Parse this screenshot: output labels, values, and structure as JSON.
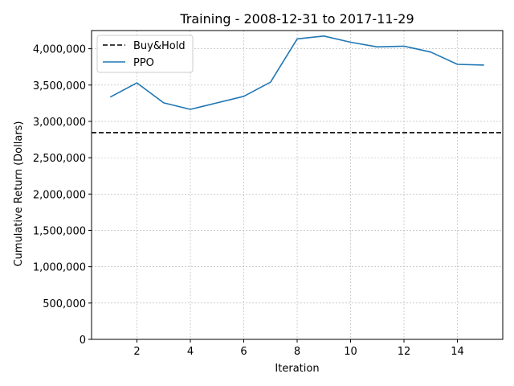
{
  "chart_data": {
    "type": "line",
    "title": "Training - 2008-12-31 to 2017-11-29",
    "xlabel": "Iteration",
    "ylabel": "Cumulative Return (Dollars)",
    "xlim": [
      0.3,
      15.7
    ],
    "ylim": [
      0,
      4250000
    ],
    "xticks": [
      2,
      4,
      6,
      8,
      10,
      12,
      14
    ],
    "yticks": [
      0,
      500000,
      1000000,
      1500000,
      2000000,
      2500000,
      3000000,
      3500000,
      4000000
    ],
    "ytick_labels": [
      "0",
      "500,000",
      "1,000,000",
      "1,500,000",
      "2,000,000",
      "2,500,000",
      "3,000,000",
      "3,500,000",
      "4,000,000"
    ],
    "grid": true,
    "legend_position": "top-left",
    "series": [
      {
        "name": "Buy&Hold",
        "style": "dashed",
        "color": "#000000",
        "y_constant": 2845000
      },
      {
        "name": "PPO",
        "style": "solid",
        "color": "#1f77b4",
        "x": [
          1,
          2,
          3,
          4,
          5,
          6,
          7,
          8,
          9,
          10,
          11,
          12,
          13,
          14,
          15
        ],
        "values": [
          3335000,
          3530000,
          3255000,
          3165000,
          3255000,
          3345000,
          3540000,
          4135000,
          4175000,
          4090000,
          4025000,
          4035000,
          3955000,
          3785000,
          3775000
        ]
      }
    ]
  }
}
